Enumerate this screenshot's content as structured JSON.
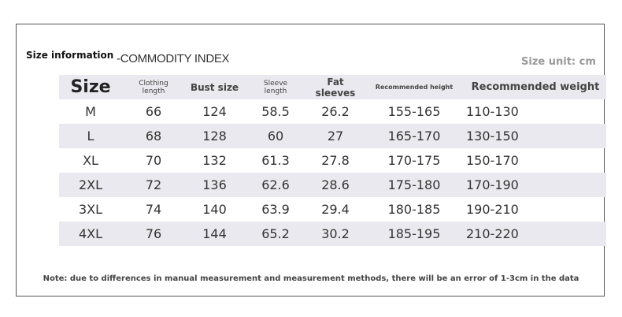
{
  "header": {
    "title": "Size information",
    "subtitle": "-COMMODITY INDEX",
    "unit": "Size unit: cm"
  },
  "table": {
    "columns": [
      "Size",
      "Clothing length",
      "Bust size",
      "Sleeve length",
      "Fat sleeves",
      "Recommended height",
      "Recommended weight"
    ],
    "rows": [
      [
        "M",
        66,
        124,
        58.5,
        26.2,
        "155-165",
        "110-130"
      ],
      [
        "L",
        68,
        128,
        60,
        27,
        "165-170",
        "130-150"
      ],
      [
        "XL",
        70,
        132,
        61.3,
        27.8,
        "170-175",
        "150-170"
      ],
      [
        "2XL",
        72,
        136,
        62.6,
        28.6,
        "175-180",
        "170-190"
      ],
      [
        "3XL",
        74,
        140,
        63.9,
        29.4,
        "180-185",
        "190-210"
      ],
      [
        "4XL",
        76,
        144,
        65.2,
        30.2,
        "185-195",
        "210-220"
      ]
    ]
  },
  "note": "Note: due to differences in manual measurement and measurement methods, there will be an error of 1-3cm in the data"
}
